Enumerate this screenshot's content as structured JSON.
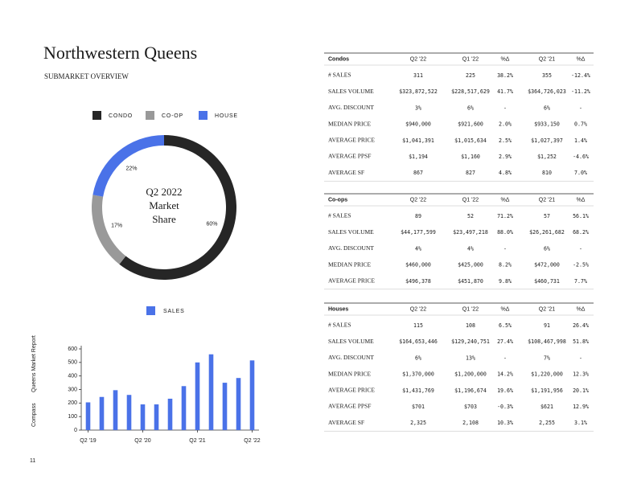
{
  "header": {
    "title": "Northwestern Queens",
    "subtitle": "SUBMARKET OVERVIEW"
  },
  "sidebar": [
    "Compass",
    "Queens Market Report"
  ],
  "page_number": "11",
  "chart_data": [
    {
      "type": "pie",
      "donut": true,
      "categories": [
        "CONDO",
        "CO-OP",
        "HOUSE"
      ],
      "values": [
        60,
        17,
        22
      ],
      "value_labels": [
        "60%",
        "17%",
        "22%"
      ],
      "colors": [
        "#262626",
        "#999999",
        "#4a72e8"
      ],
      "center_label": [
        "Q2 2022",
        "Market",
        "Share"
      ]
    },
    {
      "type": "bar",
      "categories": [
        "Q2 '19",
        null,
        null,
        null,
        "Q2 '20",
        null,
        null,
        null,
        "Q2 '21",
        null,
        null,
        null,
        "Q2 '22"
      ],
      "series": [
        {
          "name": "SALES",
          "color": "#4a72e8",
          "values": [
            205,
            245,
            295,
            260,
            190,
            190,
            232,
            325,
            500,
            560,
            350,
            385,
            515
          ]
        }
      ],
      "ylim": [
        0,
        600
      ],
      "yticks": [
        0,
        100,
        200,
        300,
        400,
        500,
        600
      ]
    }
  ],
  "tables": [
    {
      "title": "Condos",
      "columns": [
        "Q2 '22",
        "Q1 '22",
        "%Δ",
        "Q2 '21",
        "%Δ"
      ],
      "rows": [
        [
          "# SALES",
          "311",
          "225",
          "38.2%",
          "355",
          "-12.4%"
        ],
        [
          "SALES VOLUME",
          "$323,872,522",
          "$228,517,629",
          "41.7%",
          "$364,726,023",
          "-11.2%"
        ],
        [
          "AVG. DISCOUNT",
          "3%",
          "6%",
          "-",
          "6%",
          "-"
        ],
        [
          "MEDIAN PRICE",
          "$940,000",
          "$921,600",
          "2.0%",
          "$933,150",
          "0.7%"
        ],
        [
          "AVERAGE PRICE",
          "$1,041,391",
          "$1,015,634",
          "2.5%",
          "$1,027,397",
          "1.4%"
        ],
        [
          "AVERAGE PPSF",
          "$1,194",
          "$1,160",
          "2.9%",
          "$1,252",
          "-4.6%"
        ],
        [
          "AVERAGE SF",
          "867",
          "827",
          "4.8%",
          "810",
          "7.0%"
        ]
      ]
    },
    {
      "title": "Co-ops",
      "columns": [
        "Q2 '22",
        "Q1 '22",
        "%Δ",
        "Q2 '21",
        "%Δ"
      ],
      "rows": [
        [
          "# SALES",
          "89",
          "52",
          "71.2%",
          "57",
          "56.1%"
        ],
        [
          "SALES VOLUME",
          "$44,177,599",
          "$23,497,218",
          "88.0%",
          "$26,261,682",
          "68.2%"
        ],
        [
          "AVG. DISCOUNT",
          "4%",
          "4%",
          "-",
          "6%",
          "-"
        ],
        [
          "MEDIAN PRICE",
          "$460,000",
          "$425,000",
          "8.2%",
          "$472,000",
          "-2.5%"
        ],
        [
          "AVERAGE PRICE",
          "$496,378",
          "$451,870",
          "9.8%",
          "$460,731",
          "7.7%"
        ]
      ]
    },
    {
      "title": "Houses",
      "columns": [
        "Q2 '22",
        "Q1 '22",
        "%Δ",
        "Q2 '21",
        "%Δ"
      ],
      "rows": [
        [
          "# SALES",
          "115",
          "108",
          "6.5%",
          "91",
          "26.4%"
        ],
        [
          "SALES VOLUME",
          "$164,653,446",
          "$129,240,751",
          "27.4%",
          "$108,467,998",
          "51.8%"
        ],
        [
          "AVG. DISCOUNT",
          "6%",
          "13%",
          "-",
          "7%",
          "-"
        ],
        [
          "MEDIAN PRICE",
          "$1,370,000",
          "$1,200,000",
          "14.2%",
          "$1,220,000",
          "12.3%"
        ],
        [
          "AVERAGE PRICE",
          "$1,431,769",
          "$1,196,674",
          "19.6%",
          "$1,191,956",
          "20.1%"
        ],
        [
          "AVERAGE PPSF",
          "$701",
          "$703",
          "-0.3%",
          "$621",
          "12.9%"
        ],
        [
          "AVERAGE SF",
          "2,325",
          "2,108",
          "10.3%",
          "2,255",
          "3.1%"
        ]
      ]
    }
  ]
}
